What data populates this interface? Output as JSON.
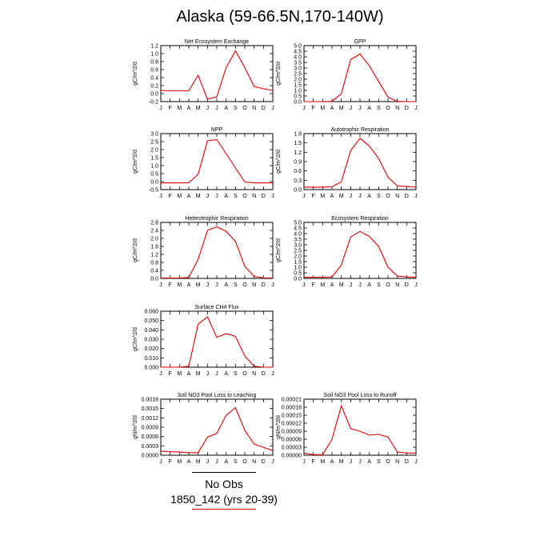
{
  "title": "Alaska (59-66.5N,170-140W)",
  "months": [
    "J",
    "F",
    "M",
    "A",
    "M",
    "J",
    "J",
    "A",
    "S",
    "O",
    "N",
    "D",
    "J"
  ],
  "legend": {
    "obs_label": "No Obs",
    "case_label": "1850_142 (yrs 20-39)",
    "obs_color": "#000000",
    "case_color": "#e00000"
  },
  "chart_data": [
    {
      "type": "line",
      "title": "Net Ecosystem Exchange",
      "ylabel": "gC/m^2/d",
      "ylim": [
        -0.2,
        1.2
      ],
      "yticks": [
        "-0.2",
        "0.0",
        "0.2",
        "0.4",
        "0.6",
        "0.8",
        "1.0",
        "1.2"
      ],
      "x": [
        "J",
        "F",
        "M",
        "A",
        "M",
        "J",
        "J",
        "A",
        "S",
        "O",
        "N",
        "D",
        "J"
      ],
      "series": [
        {
          "values": [
            0.08,
            0.07,
            0.07,
            0.07,
            0.46,
            -0.14,
            -0.08,
            0.65,
            1.07,
            0.65,
            0.18,
            0.12,
            0.08
          ]
        }
      ]
    },
    {
      "type": "line",
      "title": "GPP",
      "ylabel": "gC/m^2/d",
      "ylim": [
        0.0,
        5.0
      ],
      "yticks": [
        "0.0",
        "0.5",
        "1.0",
        "1.5",
        "2.0",
        "2.5",
        "3.0",
        "3.5",
        "4.0",
        "4.5",
        "5.0"
      ],
      "x": [
        "J",
        "F",
        "M",
        "A",
        "M",
        "J",
        "J",
        "A",
        "S",
        "O",
        "N",
        "D",
        "J"
      ],
      "series": [
        {
          "values": [
            0.0,
            0.0,
            0.0,
            0.02,
            0.7,
            3.75,
            4.25,
            3.2,
            1.8,
            0.4,
            0.02,
            0.0,
            0.0
          ]
        }
      ]
    },
    {
      "type": "line",
      "title": "NPP",
      "ylabel": "gC/m^2/d",
      "ylim": [
        -0.5,
        3.0
      ],
      "yticks": [
        "-0.5",
        "0.0",
        "0.5",
        "1.0",
        "1.5",
        "2.0",
        "2.5",
        "3.0"
      ],
      "x": [
        "J",
        "F",
        "M",
        "A",
        "M",
        "J",
        "J",
        "A",
        "S",
        "O",
        "N",
        "D",
        "J"
      ],
      "series": [
        {
          "values": [
            -0.08,
            -0.08,
            -0.08,
            -0.07,
            0.45,
            2.55,
            2.62,
            1.75,
            0.85,
            -0.02,
            -0.08,
            -0.08,
            -0.08
          ]
        }
      ]
    },
    {
      "type": "line",
      "title": "Autotrophic Respiration",
      "ylabel": "gC/m^2/d",
      "ylim": [
        0.0,
        1.8
      ],
      "yticks": [
        "0.0",
        "0.3",
        "0.6",
        "0.9",
        "1.2",
        "1.5",
        "1.8"
      ],
      "x": [
        "J",
        "F",
        "M",
        "A",
        "M",
        "J",
        "J",
        "A",
        "S",
        "O",
        "N",
        "D",
        "J"
      ],
      "series": [
        {
          "values": [
            0.08,
            0.08,
            0.08,
            0.09,
            0.25,
            1.25,
            1.65,
            1.4,
            1.0,
            0.4,
            0.12,
            0.1,
            0.08
          ]
        }
      ]
    },
    {
      "type": "line",
      "title": "Heterotrophic Respiration",
      "ylabel": "gC/m^2/d",
      "ylim": [
        0.0,
        2.8
      ],
      "yticks": [
        "0.0",
        "0.4",
        "0.8",
        "1.2",
        "1.6",
        "2.0",
        "2.4",
        "2.8"
      ],
      "x": [
        "J",
        "F",
        "M",
        "A",
        "M",
        "J",
        "J",
        "A",
        "S",
        "O",
        "N",
        "D",
        "J"
      ],
      "series": [
        {
          "values": [
            0.02,
            0.02,
            0.02,
            0.05,
            0.95,
            2.4,
            2.58,
            2.35,
            1.85,
            0.6,
            0.1,
            0.03,
            0.02
          ]
        }
      ]
    },
    {
      "type": "line",
      "title": "Ecosystem Respiration",
      "ylabel": "gC/m^2/d",
      "ylim": [
        0.0,
        5.0
      ],
      "yticks": [
        "0.0",
        "0.5",
        "1.0",
        "1.5",
        "2.0",
        "2.5",
        "3.0",
        "3.5",
        "4.0",
        "4.5",
        "5.0"
      ],
      "x": [
        "J",
        "F",
        "M",
        "A",
        "M",
        "J",
        "J",
        "A",
        "S",
        "O",
        "N",
        "D",
        "J"
      ],
      "series": [
        {
          "values": [
            0.1,
            0.1,
            0.1,
            0.13,
            1.2,
            3.7,
            4.2,
            3.75,
            2.85,
            1.0,
            0.22,
            0.13,
            0.1
          ]
        }
      ]
    },
    {
      "type": "line",
      "title": "Surface CH4 Flux",
      "ylabel": "gC/m^2/d",
      "ylim": [
        0.0,
        0.06
      ],
      "yticks": [
        "0.000",
        "0.010",
        "0.020",
        "0.030",
        "0.040",
        "0.050",
        "0.060"
      ],
      "x": [
        "J",
        "F",
        "M",
        "A",
        "M",
        "J",
        "J",
        "A",
        "S",
        "O",
        "N",
        "D",
        "J"
      ],
      "series": [
        {
          "values": [
            0.0,
            0.0,
            0.0,
            0.001,
            0.046,
            0.054,
            0.032,
            0.036,
            0.033,
            0.012,
            0.001,
            0.0,
            0.0
          ]
        }
      ]
    },
    {
      "type": "line",
      "title": "Soil NO3 Pool Loss to Leaching",
      "ylabel": "gN/m^2/d",
      "ylim": [
        0.0,
        0.0018
      ],
      "yticks": [
        "0.0000",
        "0.0003",
        "0.0006",
        "0.0009",
        "0.0012",
        "0.0015",
        "0.0018"
      ],
      "x": [
        "J",
        "F",
        "M",
        "A",
        "M",
        "J",
        "J",
        "A",
        "S",
        "O",
        "N",
        "D",
        "J"
      ],
      "series": [
        {
          "values": [
            0.00013,
            0.00011,
            0.0001,
            8e-05,
            8e-05,
            0.00058,
            0.0007,
            0.00128,
            0.00153,
            0.0008,
            0.00036,
            0.00025,
            0.00015
          ]
        }
      ]
    },
    {
      "type": "line",
      "title": "Soil NO3 Pool Loss to Runoff",
      "ylabel": "gN/m^2/d",
      "ylim": [
        0.0,
        0.00021
      ],
      "yticks": [
        "0.00000",
        "0.00003",
        "0.00006",
        "0.00009",
        "0.00012",
        "0.00015",
        "0.00018",
        "0.00021"
      ],
      "x": [
        "J",
        "F",
        "M",
        "A",
        "M",
        "J",
        "J",
        "A",
        "S",
        "O",
        "N",
        "D",
        "J"
      ],
      "series": [
        {
          "values": [
            8e-06,
            2e-06,
            2e-06,
            6e-05,
            0.000185,
            0.0001,
            9e-05,
            7.5e-05,
            7.8e-05,
            6.8e-05,
            1.2e-05,
            8e-06,
            8e-06
          ]
        }
      ]
    }
  ]
}
